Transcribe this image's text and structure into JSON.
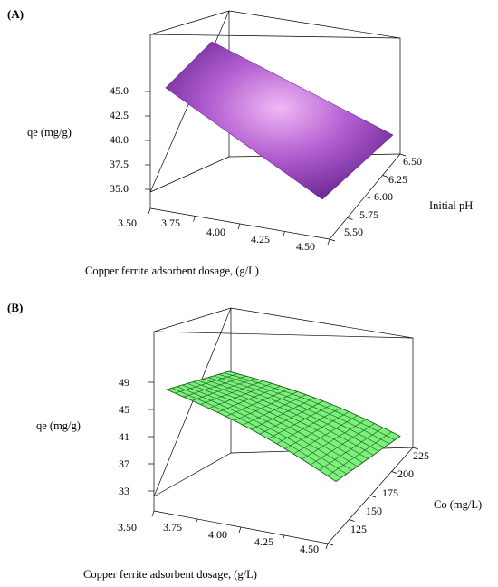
{
  "chart_data": [
    {
      "type": "surface",
      "panel_label": "(A)",
      "xlabel": "Copper ferrite adsorbent dosage, (g/L)",
      "ylabel": "Initial pH",
      "zlabel": "qe (mg/g)",
      "x_ticks": [
        "3.50",
        "3.75",
        "4.00",
        "4.25",
        "4.50"
      ],
      "y_ticks": [
        "5.50",
        "5.75",
        "6.00",
        "6.25",
        "6.50"
      ],
      "z_ticks": [
        "35.0",
        "37.5",
        "40.0",
        "42.5",
        "45.0"
      ],
      "xlim": [
        3.5,
        4.5
      ],
      "ylim": [
        5.5,
        6.5
      ],
      "zlim": [
        35.0,
        45.0
      ],
      "surface_color": "#8a2fb8",
      "surface_highlight": "#f0b8f4",
      "grid_lines": false,
      "corners": [
        {
          "x": 3.5,
          "y": 5.5,
          "z": 44.2
        },
        {
          "x": 4.5,
          "y": 5.5,
          "z": 33.6
        },
        {
          "x": 4.5,
          "y": 6.5,
          "z": 36.3
        },
        {
          "x": 3.5,
          "y": 6.5,
          "z": 45.3
        }
      ]
    },
    {
      "type": "surface",
      "panel_label": "(B)",
      "xlabel": "Copper ferrite adsorbent dosage, (g/L)",
      "ylabel": "Co (mg/L)",
      "zlabel": "qe (mg/g)",
      "x_ticks": [
        "3.50",
        "3.75",
        "4.00",
        "4.25",
        "4.50"
      ],
      "y_ticks": [
        "125",
        "150",
        "175",
        "200",
        "225"
      ],
      "z_ticks": [
        "33",
        "37",
        "41",
        "45",
        "49"
      ],
      "xlim": [
        3.5,
        4.5
      ],
      "ylim": [
        125,
        225
      ],
      "zlim": [
        33,
        49
      ],
      "surface_color": "#7cf07c",
      "mesh_color": "#1a5a1a",
      "grid_lines": true,
      "x_lines": 20,
      "y_lines": 12,
      "corners": [
        {
          "x": 3.5,
          "y": 125,
          "z": 46.2
        },
        {
          "x": 4.5,
          "y": 125,
          "z": 39.5
        },
        {
          "x": 4.5,
          "y": 225,
          "z": 41.0
        },
        {
          "x": 3.5,
          "y": 225,
          "z": 47.2
        }
      ]
    }
  ]
}
